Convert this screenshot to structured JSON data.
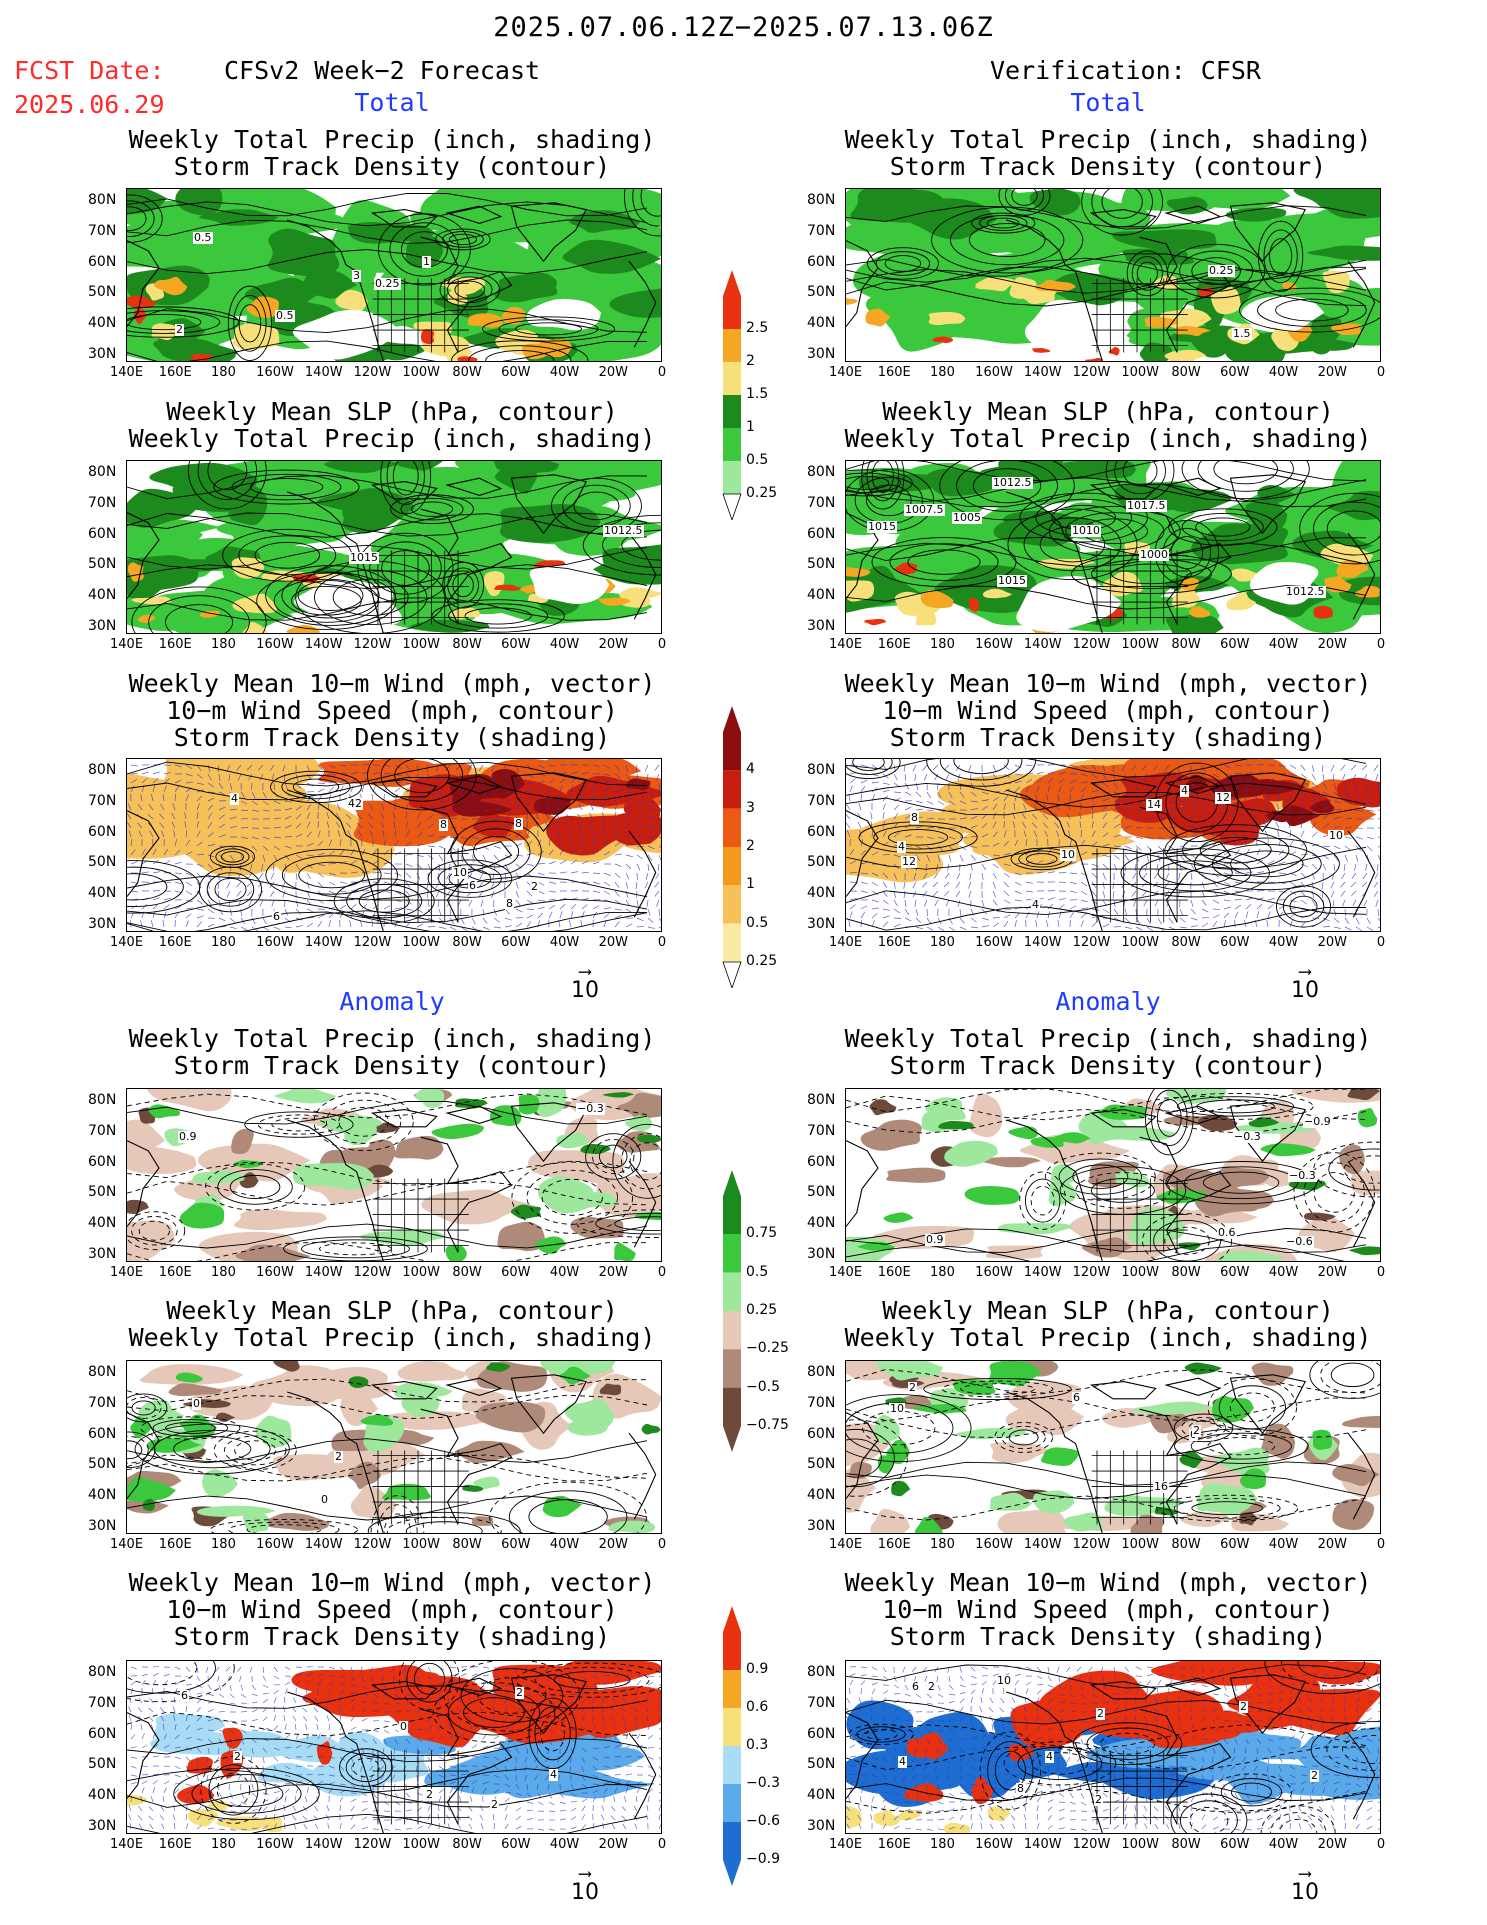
{
  "header": {
    "time_range": "2025.07.06.12Z−2025.07.13.06Z",
    "fcst_label": "FCST Date:",
    "fcst_date": "2025.06.29",
    "left_title": "CFSv2 Week−2 Forecast",
    "right_title": "Verification: CFSR"
  },
  "sections": {
    "total": "Total",
    "anomaly": "Anomaly"
  },
  "panel_titles": {
    "precip_storm": [
      "Weekly Total Precip (inch, shading)",
      "Storm Track Density (contour)"
    ],
    "slp_precip": [
      "Weekly Mean SLP (hPa, contour)",
      "Weekly Total Precip (inch, shading)"
    ],
    "wind_storm": [
      "Weekly Mean 10−m Wind (mph, vector)",
      "10−m Wind Speed (mph, contour)",
      "Storm Track Density (shading)"
    ]
  },
  "axes": {
    "lat_labels": [
      "80N",
      "70N",
      "60N",
      "50N",
      "40N",
      "30N"
    ],
    "lon_labels": [
      "140E",
      "160E",
      "180",
      "160W",
      "140W",
      "120W",
      "100W",
      "80W",
      "60W",
      "40W",
      "20W",
      "0"
    ]
  },
  "vector_reference": "10",
  "colorbars": {
    "total_precip": {
      "labels": [
        "2.5",
        "2",
        "1.5",
        "1",
        "0.5",
        "0.25"
      ],
      "colors": [
        "#e8320f",
        "#f5a623",
        "#f7e07a",
        "#1d8a1d",
        "#3cc83c",
        "#9ee89e"
      ]
    },
    "total_storm": {
      "labels": [
        "4",
        "3",
        "2",
        "1",
        "0.5",
        "0.25"
      ],
      "colors": [
        "#8b0d0d",
        "#c81e0e",
        "#ea5a12",
        "#f39a1c",
        "#f7c15a",
        "#fbeaa2"
      ]
    },
    "anom_precip": {
      "labels": [
        "0.75",
        "0.5",
        "0.25",
        "−0.25",
        "−0.5",
        "−0.75"
      ],
      "colors": [
        "#1d8a1d",
        "#3cc83c",
        "#9ee89e",
        "#e6c8b8",
        "#b08a78",
        "#6e4a3c"
      ]
    },
    "anom_storm": {
      "labels": [
        "0.9",
        "0.6",
        "0.3",
        "−0.3",
        "−0.6",
        "−0.9"
      ],
      "colors": [
        "#e8320f",
        "#f5a623",
        "#f7e07a",
        "#a8dcf5",
        "#5aaaea",
        "#1e6ed2"
      ]
    }
  },
  "contour_labels": {
    "L_total_precip": [
      "0.25",
      "0.5",
      "3",
      "2",
      "1",
      "0.5"
    ],
    "L_total_slp": [
      "1012.5",
      "1015"
    ],
    "L_total_wind": [
      "42",
      "8",
      "8",
      "6",
      "4",
      "10",
      "2",
      "6",
      "8"
    ],
    "R_total_precip": [
      "0.25",
      "1.5"
    ],
    "R_total_slp": [
      "1005",
      "1007.5",
      "1010",
      "1012.5",
      "1015",
      "1017.5",
      "1015",
      "1000",
      "1012.5"
    ],
    "R_total_wind": [
      "4",
      "10",
      "8",
      "4",
      "12",
      "12",
      "14",
      "10",
      "4"
    ],
    "L_anom_precip": [
      "−0.3",
      "0.9"
    ],
    "L_anom_slp": [
      "0",
      "2",
      "0"
    ],
    "L_anom_wind": [
      "4",
      "2",
      "2",
      "6",
      "2",
      "2",
      "0"
    ],
    "R_anom_precip": [
      "0.9",
      "0.6",
      "−0.3",
      "−0.6",
      "−0.3",
      "−0.9"
    ],
    "R_anom_slp": [
      "16",
      "10",
      "6",
      "0",
      "2",
      "2"
    ],
    "R_anom_wind": [
      "4",
      "4",
      "6",
      "2",
      "2",
      "10",
      "8",
      "2",
      "2",
      "2"
    ]
  }
}
